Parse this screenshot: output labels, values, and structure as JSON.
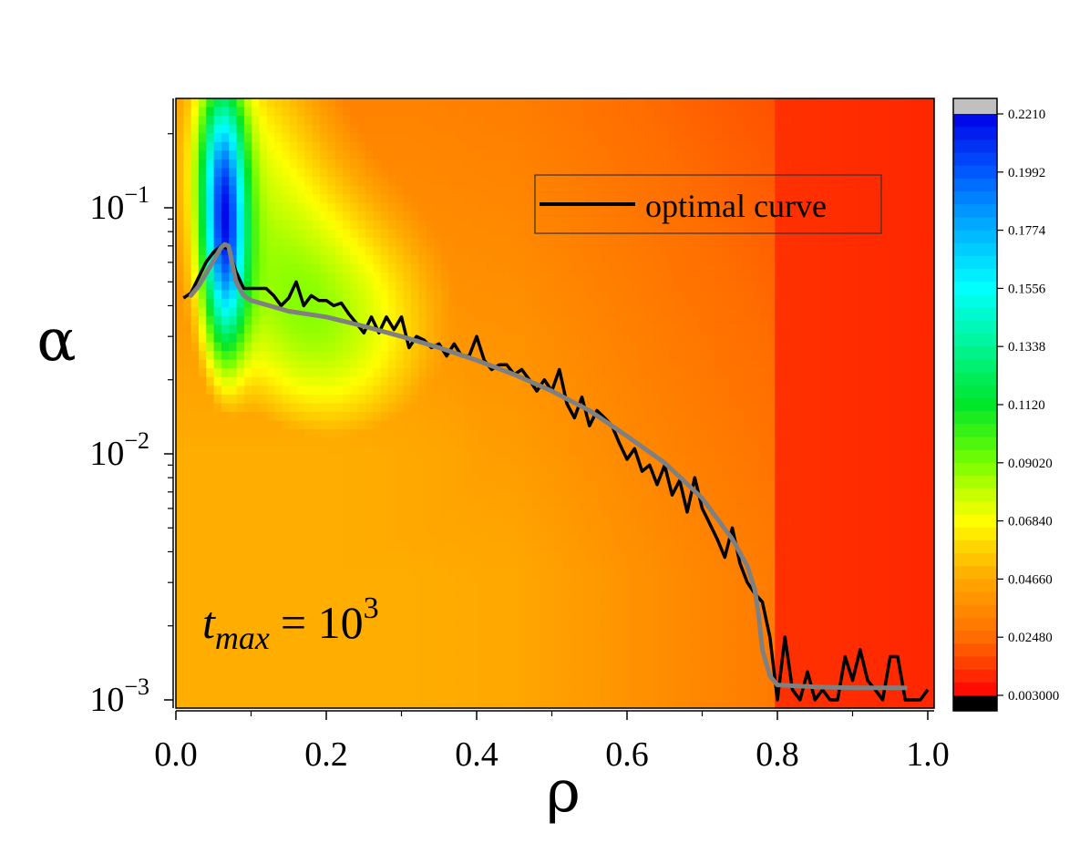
{
  "chart_data": {
    "type": "heatmap",
    "xlabel": "ρ",
    "ylabel": "α",
    "xlim": [
      0.0,
      1.0
    ],
    "ylim": [
      0.001,
      0.28
    ],
    "y_scale": "log",
    "x_ticks": [
      "0.0",
      "0.2",
      "0.4",
      "0.6",
      "0.8",
      "1.0"
    ],
    "y_ticks": [
      {
        "value": 0.001,
        "base": "10",
        "exp": "−3"
      },
      {
        "value": 0.01,
        "base": "10",
        "exp": "−2"
      },
      {
        "value": 0.1,
        "base": "10",
        "exp": "−1"
      }
    ],
    "colorbar": {
      "labels": [
        "0.2210",
        "0.1992",
        "0.1774",
        "0.1556",
        "0.1338",
        "0.1120",
        "0.09020",
        "0.06840",
        "0.04660",
        "0.02480",
        "0.003000"
      ],
      "values": [
        0.221,
        0.1992,
        0.1774,
        0.1556,
        0.1338,
        0.112,
        0.0902,
        0.0684,
        0.0466,
        0.0248,
        0.003
      ],
      "over_color": "#c0c0c0",
      "under_color": "#000000"
    },
    "legend": {
      "entries": [
        {
          "label": "optimal curve",
          "color": "#000000"
        }
      ],
      "placement": "top-right"
    },
    "annotation": {
      "base": "t",
      "subscript": "max",
      "eq": "= 10",
      "exp": "3"
    },
    "series": [
      {
        "name": "optimal curve",
        "color": "#000000",
        "x": [
          0.01,
          0.02,
          0.03,
          0.04,
          0.05,
          0.06,
          0.07,
          0.08,
          0.09,
          0.1,
          0.11,
          0.12,
          0.13,
          0.14,
          0.15,
          0.16,
          0.17,
          0.18,
          0.19,
          0.2,
          0.21,
          0.22,
          0.23,
          0.24,
          0.25,
          0.26,
          0.27,
          0.28,
          0.29,
          0.3,
          0.31,
          0.32,
          0.33,
          0.34,
          0.35,
          0.36,
          0.37,
          0.38,
          0.39,
          0.4,
          0.41,
          0.42,
          0.43,
          0.44,
          0.45,
          0.46,
          0.47,
          0.48,
          0.49,
          0.5,
          0.51,
          0.52,
          0.53,
          0.54,
          0.55,
          0.56,
          0.57,
          0.58,
          0.59,
          0.6,
          0.61,
          0.62,
          0.63,
          0.64,
          0.65,
          0.66,
          0.67,
          0.68,
          0.69,
          0.7,
          0.71,
          0.72,
          0.73,
          0.74,
          0.75,
          0.76,
          0.77,
          0.78,
          0.79,
          0.8,
          0.81,
          0.82,
          0.83,
          0.84,
          0.85,
          0.86,
          0.87,
          0.88,
          0.89,
          0.9,
          0.91,
          0.92,
          0.93,
          0.94,
          0.95,
          0.96,
          0.97,
          0.98,
          0.99,
          1.0
        ],
        "y": [
          0.043,
          0.045,
          0.052,
          0.06,
          0.066,
          0.07,
          0.068,
          0.055,
          0.047,
          0.047,
          0.047,
          0.047,
          0.044,
          0.04,
          0.043,
          0.05,
          0.04,
          0.044,
          0.042,
          0.042,
          0.04,
          0.041,
          0.037,
          0.034,
          0.031,
          0.036,
          0.031,
          0.036,
          0.032,
          0.036,
          0.027,
          0.03,
          0.029,
          0.027,
          0.028,
          0.025,
          0.028,
          0.025,
          0.025,
          0.03,
          0.024,
          0.022,
          0.023,
          0.023,
          0.021,
          0.022,
          0.02,
          0.018,
          0.02,
          0.018,
          0.022,
          0.016,
          0.014,
          0.017,
          0.013,
          0.015,
          0.014,
          0.013,
          0.011,
          0.0095,
          0.0105,
          0.0085,
          0.009,
          0.0075,
          0.009,
          0.0068,
          0.0078,
          0.0058,
          0.008,
          0.006,
          0.0052,
          0.0045,
          0.0038,
          0.005,
          0.0036,
          0.003,
          0.0027,
          0.0025,
          0.0018,
          0.001,
          0.0018,
          0.0011,
          0.001,
          0.0013,
          0.001,
          0.0011,
          0.001,
          0.001,
          0.0015,
          0.0012,
          0.0016,
          0.0012,
          0.0011,
          0.001,
          0.0015,
          0.0015,
          0.001,
          0.001,
          0.001,
          0.0011
        ]
      },
      {
        "name": "",
        "color": "#808080",
        "x": [
          0.02,
          0.03,
          0.04,
          0.05,
          0.06,
          0.065,
          0.07,
          0.08,
          0.09,
          0.1,
          0.15,
          0.2,
          0.25,
          0.3,
          0.35,
          0.4,
          0.45,
          0.5,
          0.55,
          0.6,
          0.65,
          0.7,
          0.74,
          0.76,
          0.77,
          0.775,
          0.78,
          0.79,
          0.8,
          0.85,
          0.9,
          0.93,
          0.97
        ],
        "y": [
          0.044,
          0.048,
          0.054,
          0.061,
          0.069,
          0.071,
          0.07,
          0.05,
          0.044,
          0.042,
          0.038,
          0.036,
          0.033,
          0.03,
          0.027,
          0.024,
          0.021,
          0.018,
          0.015,
          0.0118,
          0.0092,
          0.0066,
          0.0045,
          0.0035,
          0.0028,
          0.0022,
          0.0016,
          0.00125,
          0.00115,
          0.00113,
          0.00112,
          0.00112,
          0.00112
        ]
      }
    ]
  }
}
